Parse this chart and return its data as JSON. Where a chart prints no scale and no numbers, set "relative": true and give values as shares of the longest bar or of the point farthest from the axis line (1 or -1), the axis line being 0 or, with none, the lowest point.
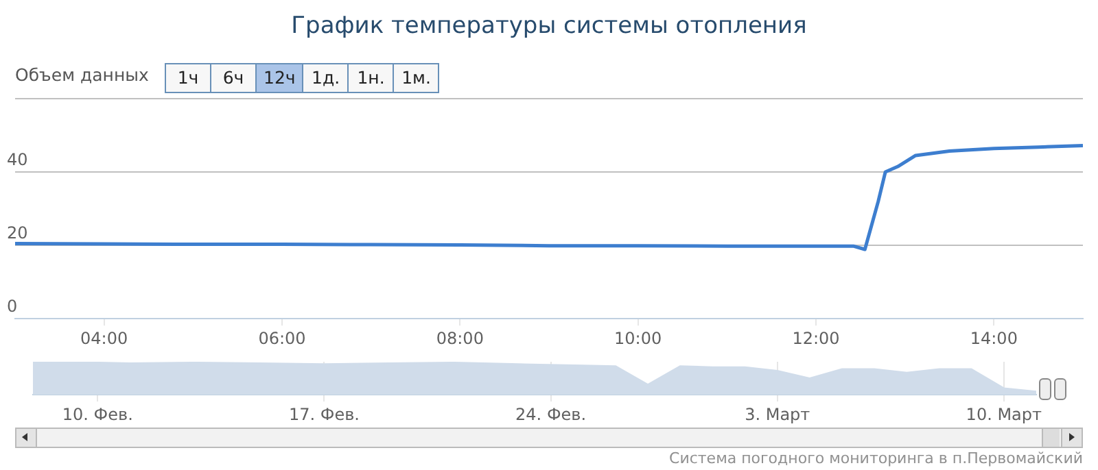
{
  "chart_data": [
    {
      "type": "line",
      "title": "График температуры системы отопления",
      "annotations": [
        "Объем данных",
        "1ч",
        "6ч",
        "12ч",
        "1д.",
        "1н.",
        "1м.",
        "Система погодного мониторинга в п.Первомайский"
      ],
      "x": [
        3,
        4,
        5,
        6,
        7,
        8,
        9,
        10,
        11,
        12,
        12.42,
        12.55,
        12.7,
        12.78,
        12.92,
        13.12,
        13.5,
        14,
        14.5,
        15
      ],
      "series": [
        {
          "color": "#3d7ecf",
          "values": [
            20.5,
            20.4,
            20.3,
            20.3,
            20.2,
            20.1,
            19.9,
            19.9,
            19.8,
            19.8,
            19.8,
            18.9,
            32,
            40,
            41.5,
            44.5,
            45.7,
            46.4,
            46.8,
            47.2
          ]
        }
      ],
      "xlim": [
        3,
        15
      ],
      "xticks": [
        {
          "value": 4,
          "label": "04:00"
        },
        {
          "value": 6,
          "label": "06:00"
        },
        {
          "value": 8,
          "label": "08:00"
        },
        {
          "value": 10,
          "label": "10:00"
        },
        {
          "value": 12,
          "label": "12:00"
        },
        {
          "value": 14,
          "label": "14:00"
        }
      ],
      "ylim": [
        0,
        60
      ],
      "yticks": [
        0,
        20,
        40,
        {
          "value": 60,
          "label": null
        }
      ],
      "grid": "y",
      "legend": false,
      "marker": "none",
      "line_style": "solid"
    },
    {
      "type": "area",
      "relative": true,
      "x": [
        "--02-08",
        "--02-09",
        "--02-11",
        "--02-13",
        "--02-15",
        "--02-17",
        "--02-19",
        "--02-21",
        "--02-23",
        "--02-25",
        "--02-26",
        "--02-27",
        "--02-28",
        "--03-01",
        "--03-02",
        "--03-03",
        "--03-04",
        "--03-05",
        "--03-06",
        "--03-07",
        "--03-08",
        "--03-09",
        "--03-10",
        "--03-11"
      ],
      "series": [
        {
          "color": "#d0dcea",
          "values": [
            0.98,
            1,
            0.96,
            0.98,
            0.96,
            0.93,
            0.96,
            0.98,
            0.93,
            0.89,
            0.87,
            0.31,
            0.87,
            0.84,
            0.84,
            0.73,
            0.5,
            0.78,
            0.78,
            0.67,
            0.78,
            0.78,
            0.2,
            0.1
          ]
        }
      ],
      "xlim": [
        "--02-08",
        "--03-11"
      ],
      "xticks": [
        {
          "value": "--02-10",
          "label": "10. Фев."
        },
        {
          "value": "--02-17",
          "label": "17. Фев."
        },
        {
          "value": "--02-24",
          "label": "24. Фев."
        },
        {
          "value": "--03-03",
          "label": "3. Март"
        },
        {
          "value": "--03-10",
          "label": "10. Март"
        }
      ],
      "grid": "x",
      "legend": false,
      "marker": "none"
    }
  ]
}
